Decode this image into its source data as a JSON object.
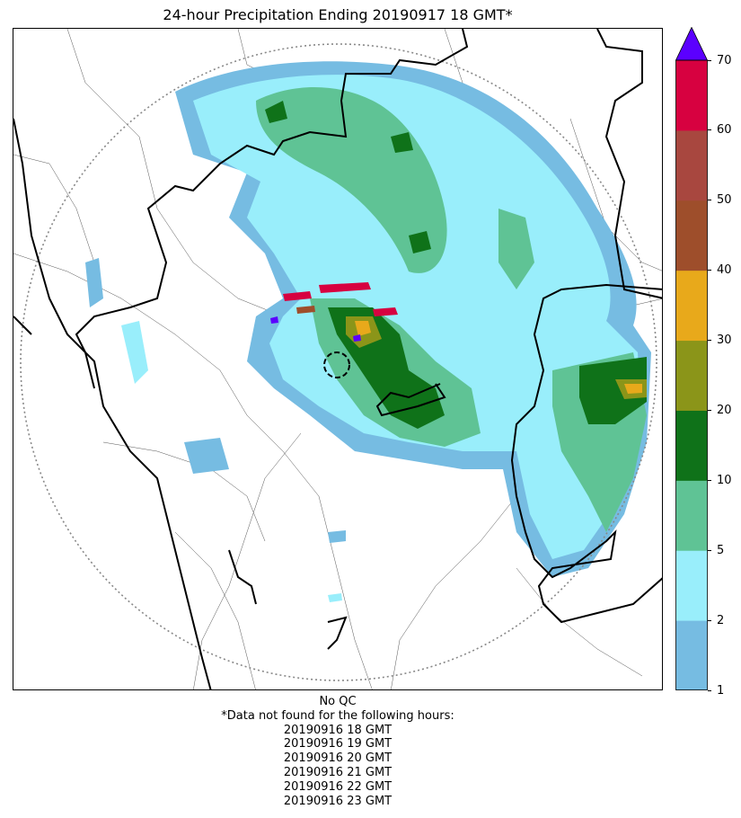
{
  "title": "24-hour Precipitation Ending 20190917 18 GMT*",
  "colorbar": {
    "ticks": [
      "1",
      "2",
      "5",
      "10",
      "20",
      "30",
      "40",
      "50",
      "60",
      "70"
    ],
    "bins": [
      {
        "from": "1",
        "to": "2",
        "color": "#76bce2"
      },
      {
        "from": "2",
        "to": "5",
        "color": "#99eefb"
      },
      {
        "from": "5",
        "to": "10",
        "color": "#5fc395"
      },
      {
        "from": "10",
        "to": "20",
        "color": "#0f7219"
      },
      {
        "from": "20",
        "to": "30",
        "color": "#8b9519"
      },
      {
        "from": "30",
        "to": "40",
        "color": "#e8a91b"
      },
      {
        "from": "40",
        "to": "50",
        "color": "#9e4e2b"
      },
      {
        "from": "50",
        "to": "60",
        "color": "#a8473f"
      },
      {
        "from": "60",
        "to": "70",
        "color": "#d70140"
      }
    ],
    "overflow_color": "#5b00ff"
  },
  "footer": {
    "qc": "No QC",
    "missing_note": "*Data not found for the following hours:",
    "missing_hours": [
      "20190916 18 GMT",
      "20190916 19 GMT",
      "20190916 20 GMT",
      "20190916 21 GMT",
      "20190916 22 GMT",
      "20190916 23 GMT"
    ]
  }
}
